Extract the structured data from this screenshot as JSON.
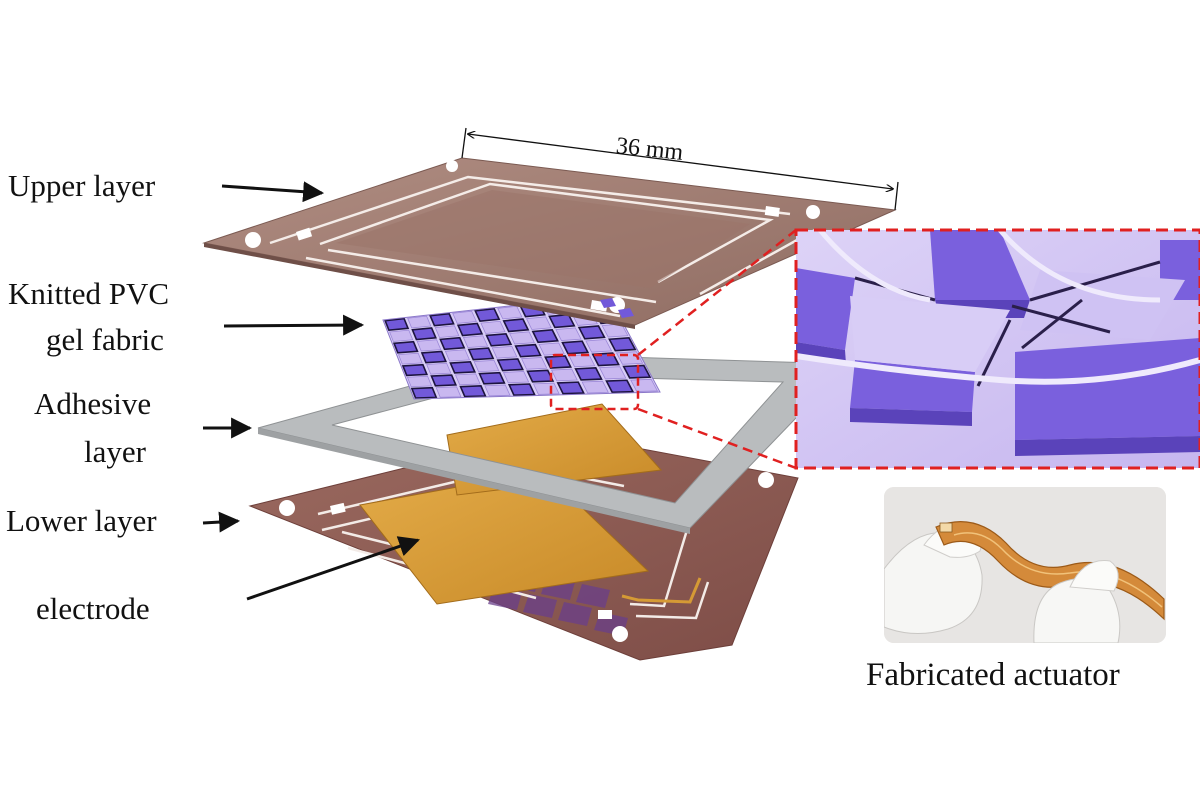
{
  "labels": {
    "upper_layer": "Upper layer",
    "knitted_line1": "Knitted PVC",
    "knitted_line2": "gel fabric",
    "adhesive_line1": "Adhesive",
    "adhesive_line2": "layer",
    "lower_layer": "Lower layer",
    "electrode": "electrode",
    "dimension": "36 mm",
    "photo_caption": "Fabricated actuator"
  },
  "colors": {
    "upper_layer": "#a07c70",
    "lower_layer": "#8e5a52",
    "electrode": "#d59a35",
    "adhesive": "#b9bcbe",
    "gel_light": "#c9b8f0",
    "gel_dark": "#7259d9",
    "zoom_frame": "#e02020",
    "arrow": "#111111"
  },
  "icons": {
    "arrow": "arrow-right-icon",
    "photo": "actuator-photo"
  }
}
